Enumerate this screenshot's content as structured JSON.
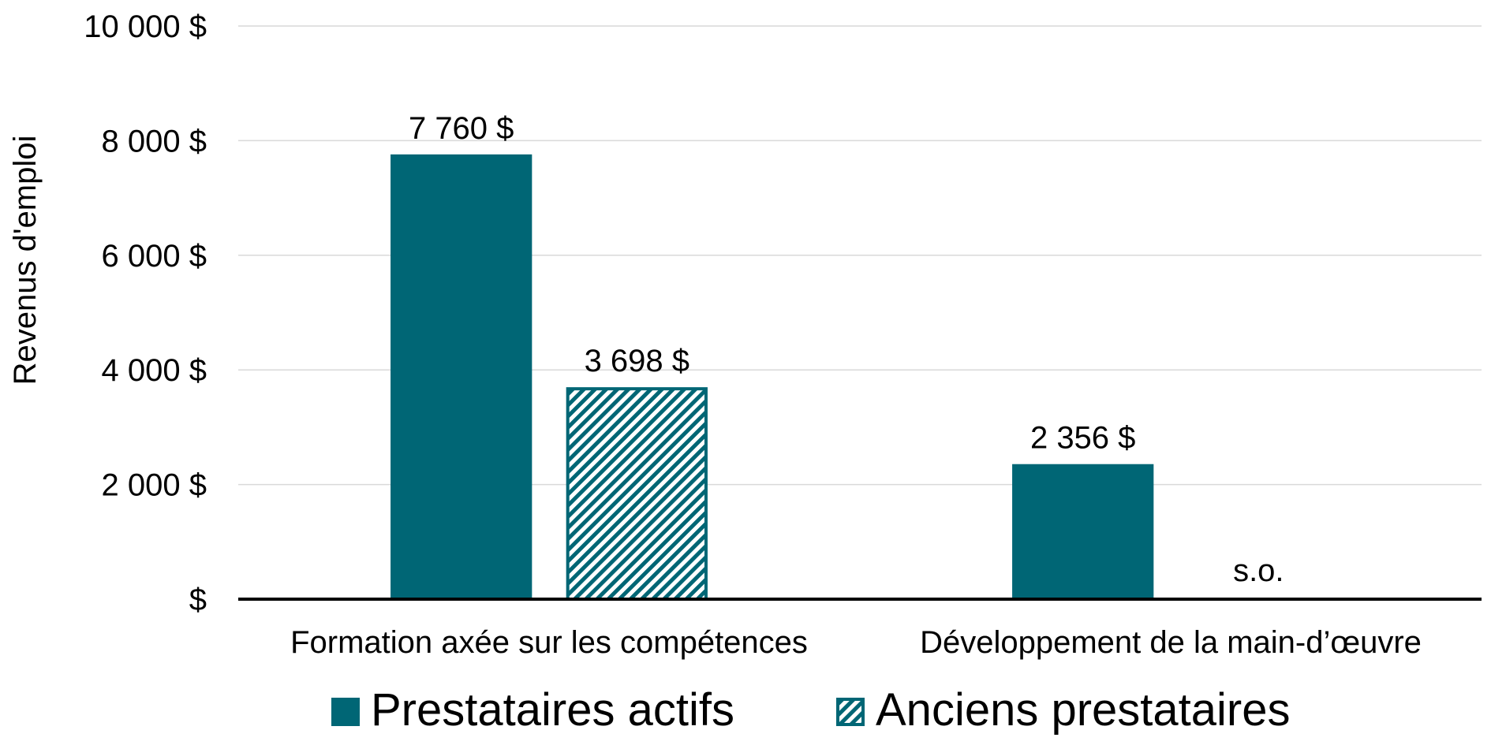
{
  "chart_data": {
    "type": "bar",
    "ylabel": "Revenus d'emploi",
    "ylim": [
      0,
      10000
    ],
    "yticks": [
      {
        "value": 0,
        "label": "$"
      },
      {
        "value": 2000,
        "label": "2 000 $"
      },
      {
        "value": 4000,
        "label": "4 000 $"
      },
      {
        "value": 6000,
        "label": "6 000 $"
      },
      {
        "value": 8000,
        "label": "8 000 $"
      },
      {
        "value": 10000,
        "label": "10 000 $"
      }
    ],
    "categories": [
      "Formation axée sur les compétences",
      "Développement de la main-d’œuvre"
    ],
    "series": [
      {
        "name": "Prestataires actifs",
        "style": "solid",
        "color": "#006675",
        "values": [
          7760,
          2356
        ],
        "labels": [
          "7 760 $",
          "2 356 $"
        ]
      },
      {
        "name": "Anciens prestataires",
        "style": "hatched",
        "color": "#006675",
        "values": [
          3698,
          null
        ],
        "labels": [
          "3 698 $",
          "s.o."
        ]
      }
    ],
    "grid": true,
    "legend": "bottom"
  }
}
